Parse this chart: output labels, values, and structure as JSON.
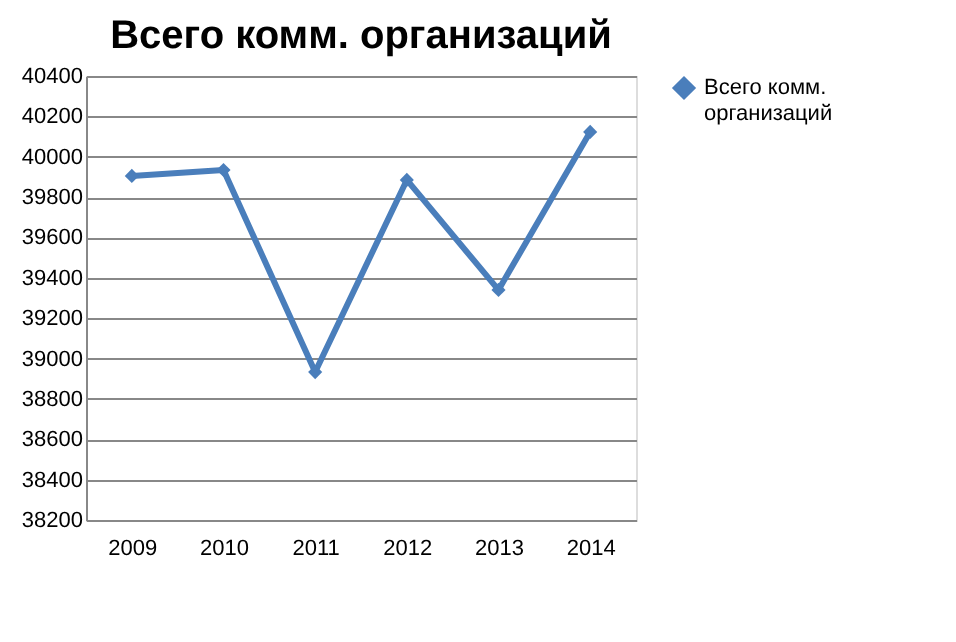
{
  "chart_data": {
    "type": "line",
    "title": "Всего комм. организаций",
    "categories": [
      "2009",
      "2010",
      "2011",
      "2012",
      "2013",
      "2014"
    ],
    "series": [
      {
        "name": "Всего комм. организаций",
        "color": "#4a7ebb",
        "values": [
          39905,
          39934,
          38933,
          39885,
          39340,
          40123
        ]
      }
    ],
    "ylim": [
      38200,
      40400
    ],
    "yticks": [
      38200,
      38400,
      38600,
      38800,
      39000,
      39200,
      39400,
      39600,
      39800,
      40000,
      40200,
      40400
    ],
    "grid": "y",
    "legend": "right",
    "marker": "diamond",
    "line_style": "solid"
  }
}
